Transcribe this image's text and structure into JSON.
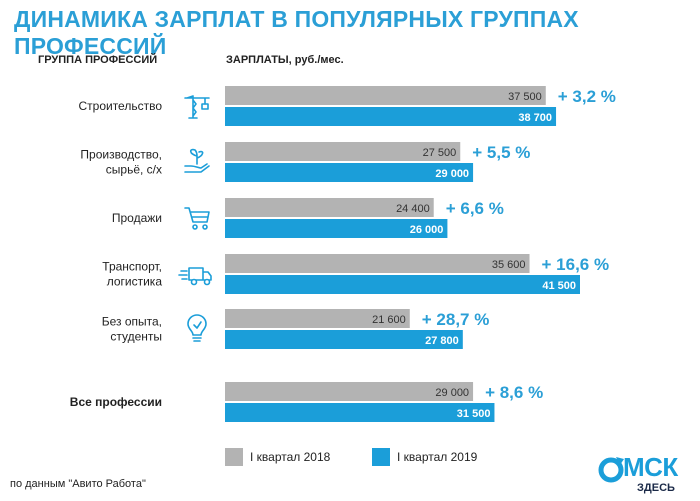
{
  "title": "ДИНАМИКА ЗАРПЛАТ В ПОПУЛЯРНЫХ ГРУППАХ ПРОФЕССИЙ",
  "headers": {
    "group": "ГРУППА ПРОФЕССИЙ",
    "salary": "ЗАРПЛАТЫ, руб./мес."
  },
  "colors": {
    "accent": "#2b9fd6",
    "bar_2018": "#b3b3b3",
    "bar_2019": "#1b9ed9",
    "icon": "#1b9ed9"
  },
  "chart_data": {
    "type": "bar",
    "orientation": "horizontal",
    "categories": [
      {
        "lines": [
          "Строительство"
        ],
        "bold": false,
        "icon": "crane-icon"
      },
      {
        "lines": [
          "Производство,",
          "сырьё, с/х"
        ],
        "bold": false,
        "icon": "sprout-hand-icon"
      },
      {
        "lines": [
          "Продажи"
        ],
        "bold": false,
        "icon": "shopping-cart-icon"
      },
      {
        "lines": [
          "Транспорт,",
          "логистика"
        ],
        "bold": false,
        "icon": "truck-icon"
      },
      {
        "lines": [
          "Без опыта,",
          "студенты"
        ],
        "bold": false,
        "icon": "lightbulb-icon"
      },
      {
        "lines": [
          "Все профессии"
        ],
        "bold": true,
        "icon": ""
      }
    ],
    "series": [
      {
        "name": "I квартал 2018",
        "values": [
          37500,
          27500,
          24400,
          35600,
          21600,
          29000
        ],
        "labels": [
          "37 500",
          "27 500",
          "24 400",
          "35 600",
          "21 600",
          "29 000"
        ]
      },
      {
        "name": "I квартал 2019",
        "values": [
          38700,
          29000,
          26000,
          41500,
          27800,
          31500
        ],
        "labels": [
          "38 700",
          "29 000",
          "26 000",
          "41 500",
          "27 800",
          "31 500"
        ]
      }
    ],
    "growth": [
      "+ 3,2 %",
      "+ 5,5 %",
      "+ 6,6 %",
      "+ 16,6 %",
      "+ 28,7 %",
      "+ 8,6 %"
    ],
    "xlim": [
      0,
      41500
    ]
  },
  "legend": {
    "item_2018": "I квартал 2018",
    "item_2019": "I квартал 2019"
  },
  "source": "по данным \"Авито Работа\"",
  "logo": {
    "text": "МСК",
    "sub": "ЗДЕСЬ"
  }
}
